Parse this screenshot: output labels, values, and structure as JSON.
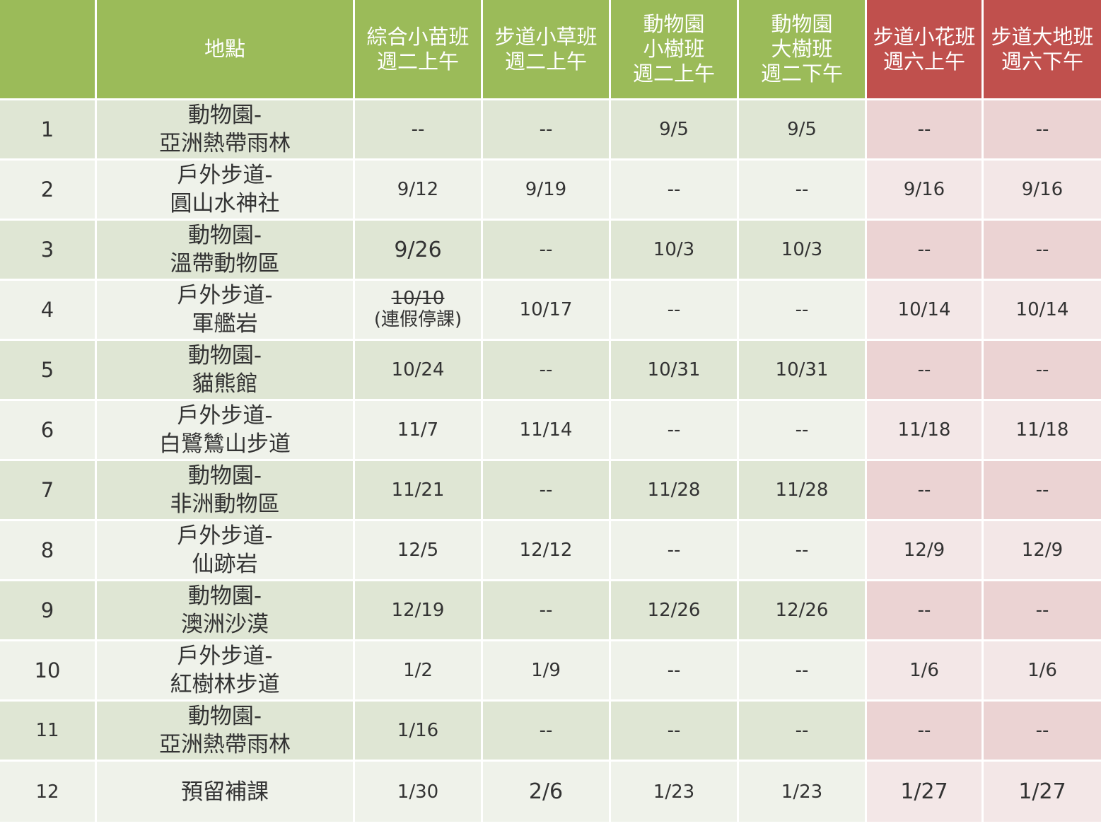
{
  "headers": [
    {
      "lines": [
        ""
      ]
    },
    {
      "lines": [
        "地點"
      ]
    },
    {
      "lines": [
        "綜合小苗班",
        "週二上午"
      ]
    },
    {
      "lines": [
        "步道小草班",
        "週二上午"
      ]
    },
    {
      "lines": [
        "動物園",
        "小樹班",
        "週二上午"
      ]
    },
    {
      "lines": [
        "動物園",
        "大樹班",
        "週二下午"
      ]
    },
    {
      "lines": [
        "步道小花班",
        "週六上午"
      ]
    },
    {
      "lines": [
        "步道大地班",
        "週六下午"
      ]
    }
  ],
  "rows": [
    {
      "num": "1",
      "loc1": "動物園-",
      "loc2": "亞洲熱帶雨林",
      "d": [
        "--",
        "--",
        "9/5",
        "9/5",
        "--",
        "--"
      ]
    },
    {
      "num": "2",
      "loc1": "戶外步道-",
      "loc2": "圓山水神社",
      "d": [
        "9/12",
        "9/19",
        "--",
        "--",
        "9/16",
        "9/16"
      ]
    },
    {
      "num": "3",
      "loc1": "動物園-",
      "loc2": "溫帶動物區",
      "d": [
        "9/26",
        "--",
        "10/3",
        "10/3",
        "--",
        "--"
      ]
    },
    {
      "num": "4",
      "loc1": "戶外步道-",
      "loc2": "軍艦岩",
      "d": [
        "",
        "10/17",
        "--",
        "--",
        "10/14",
        "10/14"
      ],
      "cancelled": {
        "date": "10/10",
        "note": "(連假停課)"
      }
    },
    {
      "num": "5",
      "loc1": "動物園-",
      "loc2": "貓熊館",
      "d": [
        "10/24",
        "--",
        "10/31",
        "10/31",
        "--",
        "--"
      ]
    },
    {
      "num": "6",
      "loc1": "戶外步道-",
      "loc2": "白鷺鷥山步道",
      "d": [
        "11/7",
        "11/14",
        "--",
        "--",
        "11/18",
        "11/18"
      ]
    },
    {
      "num": "7",
      "loc1": "動物園-",
      "loc2": "非洲動物區",
      "d": [
        "11/21",
        "--",
        "11/28",
        "11/28",
        "--",
        "--"
      ]
    },
    {
      "num": "8",
      "loc1": "戶外步道-",
      "loc2": "仙跡岩",
      "d": [
        "12/5",
        "12/12",
        "--",
        "--",
        "12/9",
        "12/9"
      ]
    },
    {
      "num": "9",
      "loc1": "動物園-",
      "loc2": "澳洲沙漠",
      "d": [
        "12/19",
        "--",
        "12/26",
        "12/26",
        "--",
        "--"
      ]
    },
    {
      "num": "10",
      "loc1": "戶外步道-",
      "loc2": "紅樹林步道",
      "d": [
        "1/2",
        "1/9",
        "--",
        "--",
        "1/6",
        "1/6"
      ]
    },
    {
      "num": "11",
      "loc1": "動物園-",
      "loc2": "亞洲熱帶雨林",
      "d": [
        "1/16",
        "--",
        "--",
        "--",
        "--",
        "--"
      ]
    },
    {
      "num": "12",
      "loc1": "",
      "loc2": "預留補課",
      "d": [
        "1/30",
        "2/6",
        "1/23",
        "1/23",
        "1/27",
        "1/27"
      ]
    }
  ],
  "colors": {
    "green_header": "#9bbb59",
    "red_header": "#c0504d",
    "green_dark": "#dfe6d4",
    "green_light": "#eff2ea",
    "red_dark": "#ebd3d3",
    "red_light": "#f3e7e7"
  }
}
